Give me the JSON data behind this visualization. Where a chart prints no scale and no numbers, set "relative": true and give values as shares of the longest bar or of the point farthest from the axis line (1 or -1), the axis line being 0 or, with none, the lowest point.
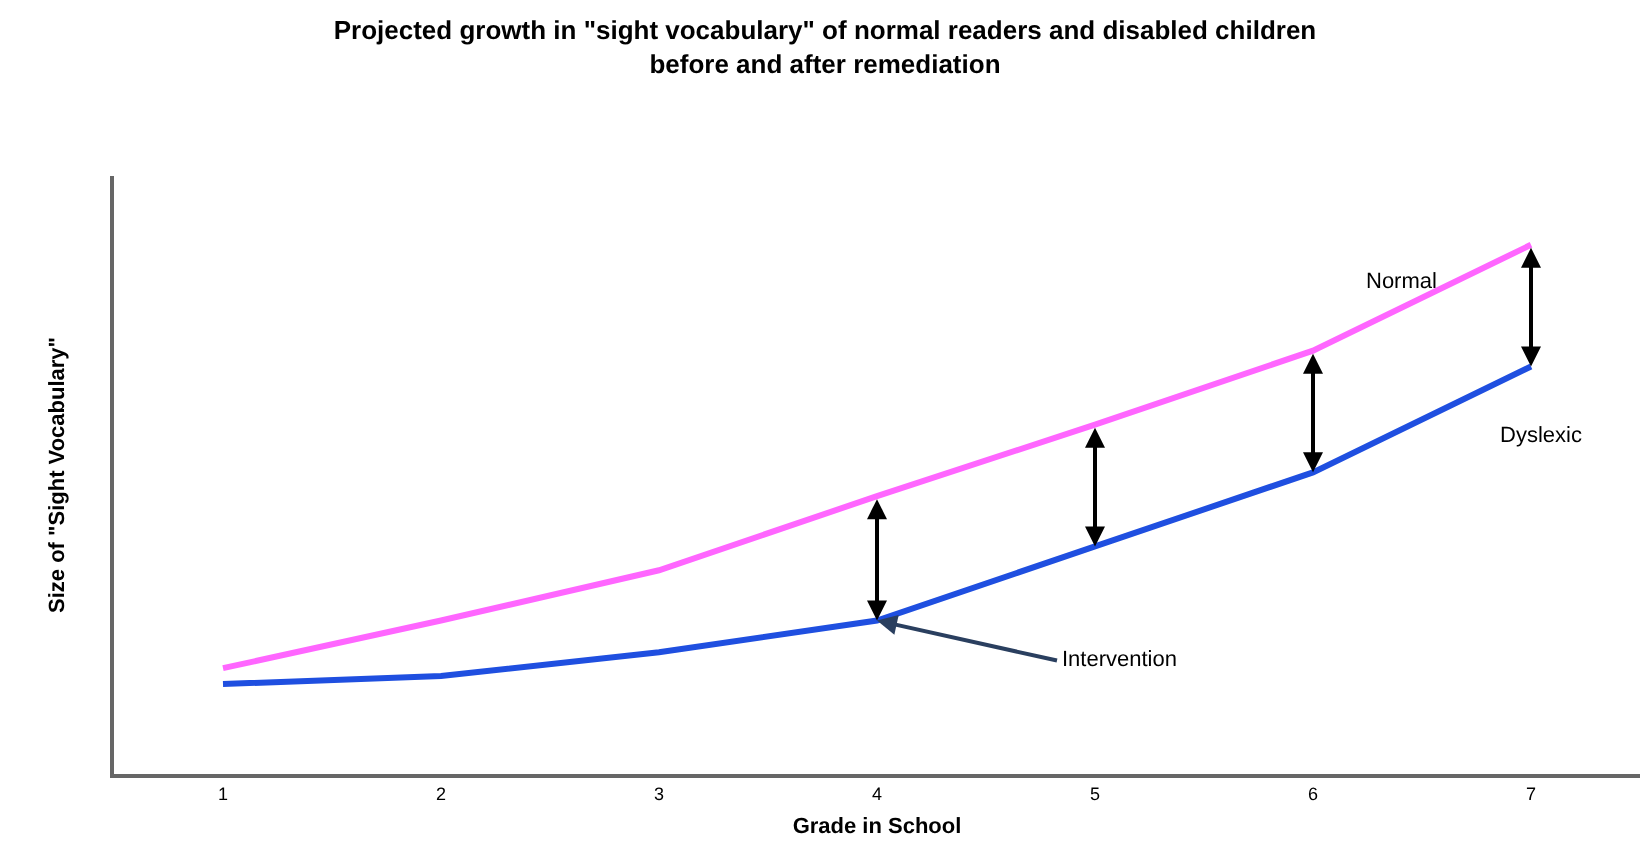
{
  "chart_data": {
    "type": "line",
    "title": "Projected growth in \"sight vocabulary\" of normal readers and disabled children\nbefore and after remediation",
    "xlabel": "Grade in School",
    "ylabel": "Size of \"Sight Vocabulary\"",
    "categories": [
      "1",
      "2",
      "3",
      "4",
      "5",
      "6",
      "7"
    ],
    "relative": true,
    "legend": false,
    "marker": "none",
    "line_style": "solid",
    "series": [
      {
        "name": "Normal",
        "color": "#ff66ff",
        "values": [
          0.2,
          0.29,
          0.385,
          0.525,
          0.66,
          0.8,
          1
        ]
      },
      {
        "name": "Dyslexic",
        "color": "#1f4fe0",
        "values": [
          0.17,
          0.185,
          0.23,
          0.29,
          0.43,
          0.57,
          0.77
        ]
      }
    ],
    "annotations": [
      {
        "text": "Intervention",
        "x": "4",
        "y": 0.29
      }
    ]
  }
}
